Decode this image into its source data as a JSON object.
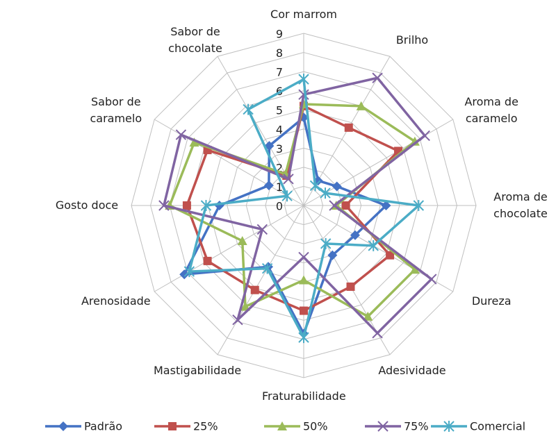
{
  "chart_data": {
    "type": "radar",
    "categories": [
      "Cor marrom",
      "Brilho",
      "Aroma de caramelo",
      "Aroma de chocolate",
      "Dureza",
      "Adesividade",
      "Fraturabilidade",
      "Mastigabilidade",
      "Arenosidade",
      "Gosto doce",
      "Sabor de caramelo",
      "Sabor de chocolate"
    ],
    "series": [
      {
        "name": "Padrão",
        "color": "#4472c4",
        "values": [
          4.6,
          1.5,
          2.0,
          4.3,
          3.1,
          3.0,
          6.7,
          3.7,
          7.2,
          4.4,
          2.1,
          3.6
        ]
      },
      {
        "name": "25%",
        "color": "#c0504d",
        "values": [
          5.2,
          4.7,
          5.7,
          2.2,
          5.2,
          4.9,
          5.5,
          5.1,
          5.8,
          6.1,
          5.8,
          1.8
        ]
      },
      {
        "name": "50%",
        "color": "#9bbb59",
        "values": [
          5.3,
          6.0,
          6.7,
          1.7,
          6.7,
          6.7,
          3.9,
          6.1,
          3.7,
          7.0,
          6.6,
          1.9
        ]
      },
      {
        "name": "75%",
        "color": "#8064a2",
        "values": [
          5.8,
          7.7,
          7.3,
          1.6,
          7.7,
          7.7,
          2.7,
          6.9,
          2.5,
          7.3,
          7.4,
          1.6
        ]
      },
      {
        "name": "Comercial",
        "color": "#4bacc6",
        "values": [
          6.6,
          1.2,
          1.3,
          6.0,
          4.2,
          2.3,
          6.9,
          3.8,
          6.9,
          5.1,
          1.0,
          5.8
        ]
      }
    ],
    "ylim": [
      0,
      9
    ],
    "yticks": [
      0,
      1,
      2,
      3,
      4,
      5,
      6,
      7,
      8,
      9
    ],
    "grid": true
  }
}
